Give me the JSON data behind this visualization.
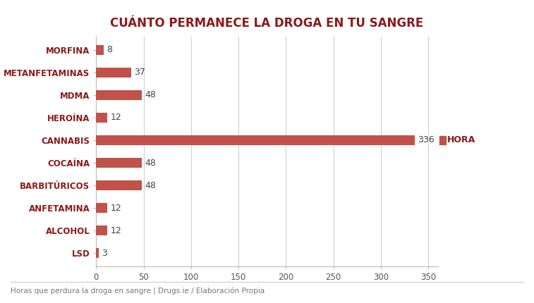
{
  "title": "CUÁNTO PERMANECE LA DROGA EN TU SANGRE",
  "categories": [
    "MORFINA",
    "METANFETAMINAS",
    "MDMA",
    "HEROÍNA",
    "CANNABIS",
    "COCAÍNA",
    "BARBITÚRICOS",
    "ANFETAMINA",
    "ALCOHOL",
    "LSD"
  ],
  "values": [
    8,
    37,
    48,
    12,
    336,
    48,
    48,
    12,
    12,
    3
  ],
  "bar_color": "#c0524a",
  "background_color": "#ffffff",
  "xlabel_ticks": [
    0,
    50,
    100,
    150,
    200,
    250,
    300,
    350
  ],
  "legend_label": "HORA",
  "footnote": "Horas que perdura la droga en sangre | Drugs.ie / Elaboración Propia",
  "title_color": "#8b1a1a",
  "label_color": "#8b1a1a",
  "value_color": "#444444",
  "grid_color": "#d0d0d0",
  "xlim": [
    0,
    360
  ]
}
